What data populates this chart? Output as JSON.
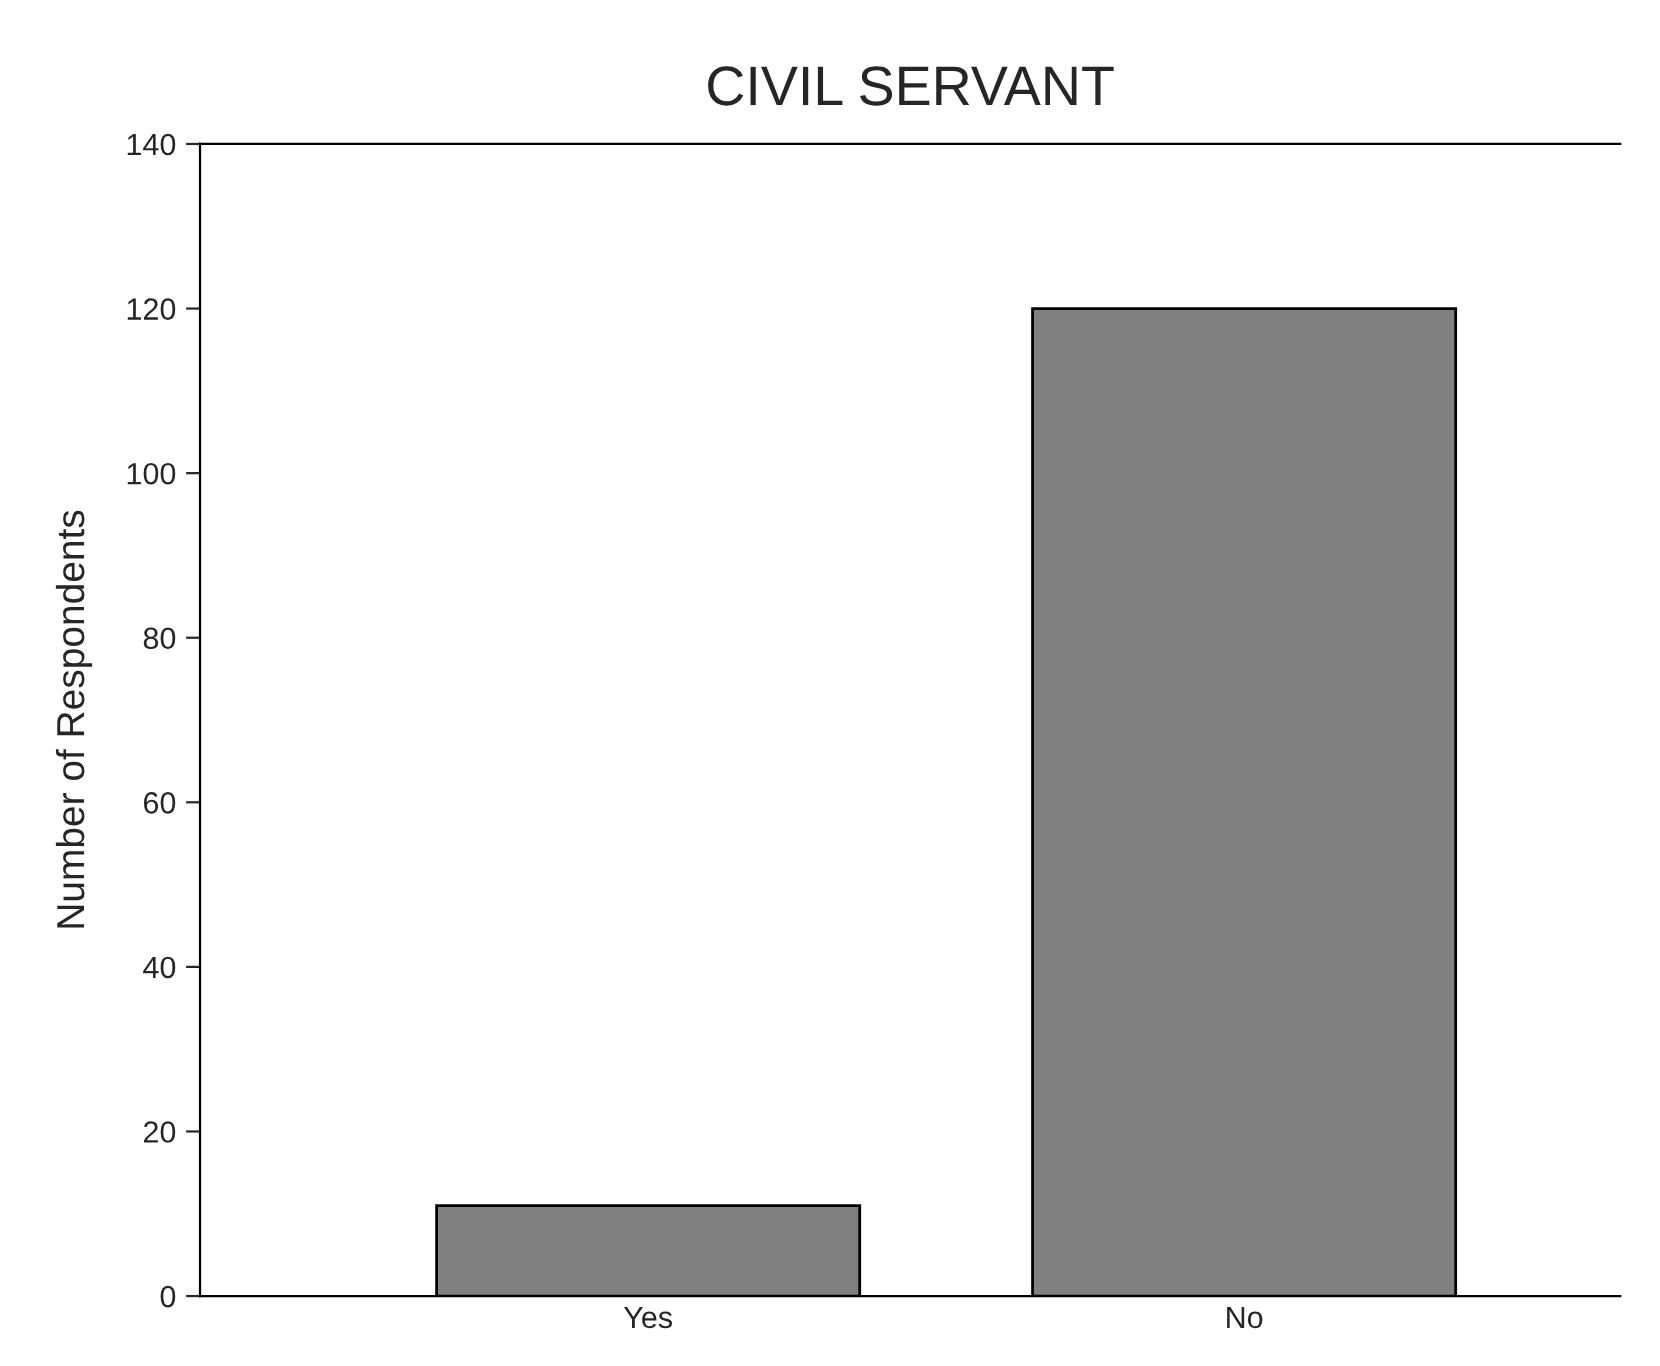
{
  "chart_data": {
    "type": "bar",
    "title": "CIVIL SERVANT",
    "ylabel": "Number of Respondents",
    "categories": [
      "Yes",
      "No"
    ],
    "values": [
      11,
      120
    ],
    "color": "#808080",
    "ylim": [
      0,
      140
    ],
    "yticks": [
      0,
      20,
      40,
      60,
      80,
      100,
      120,
      140
    ],
    "grid": false
  }
}
